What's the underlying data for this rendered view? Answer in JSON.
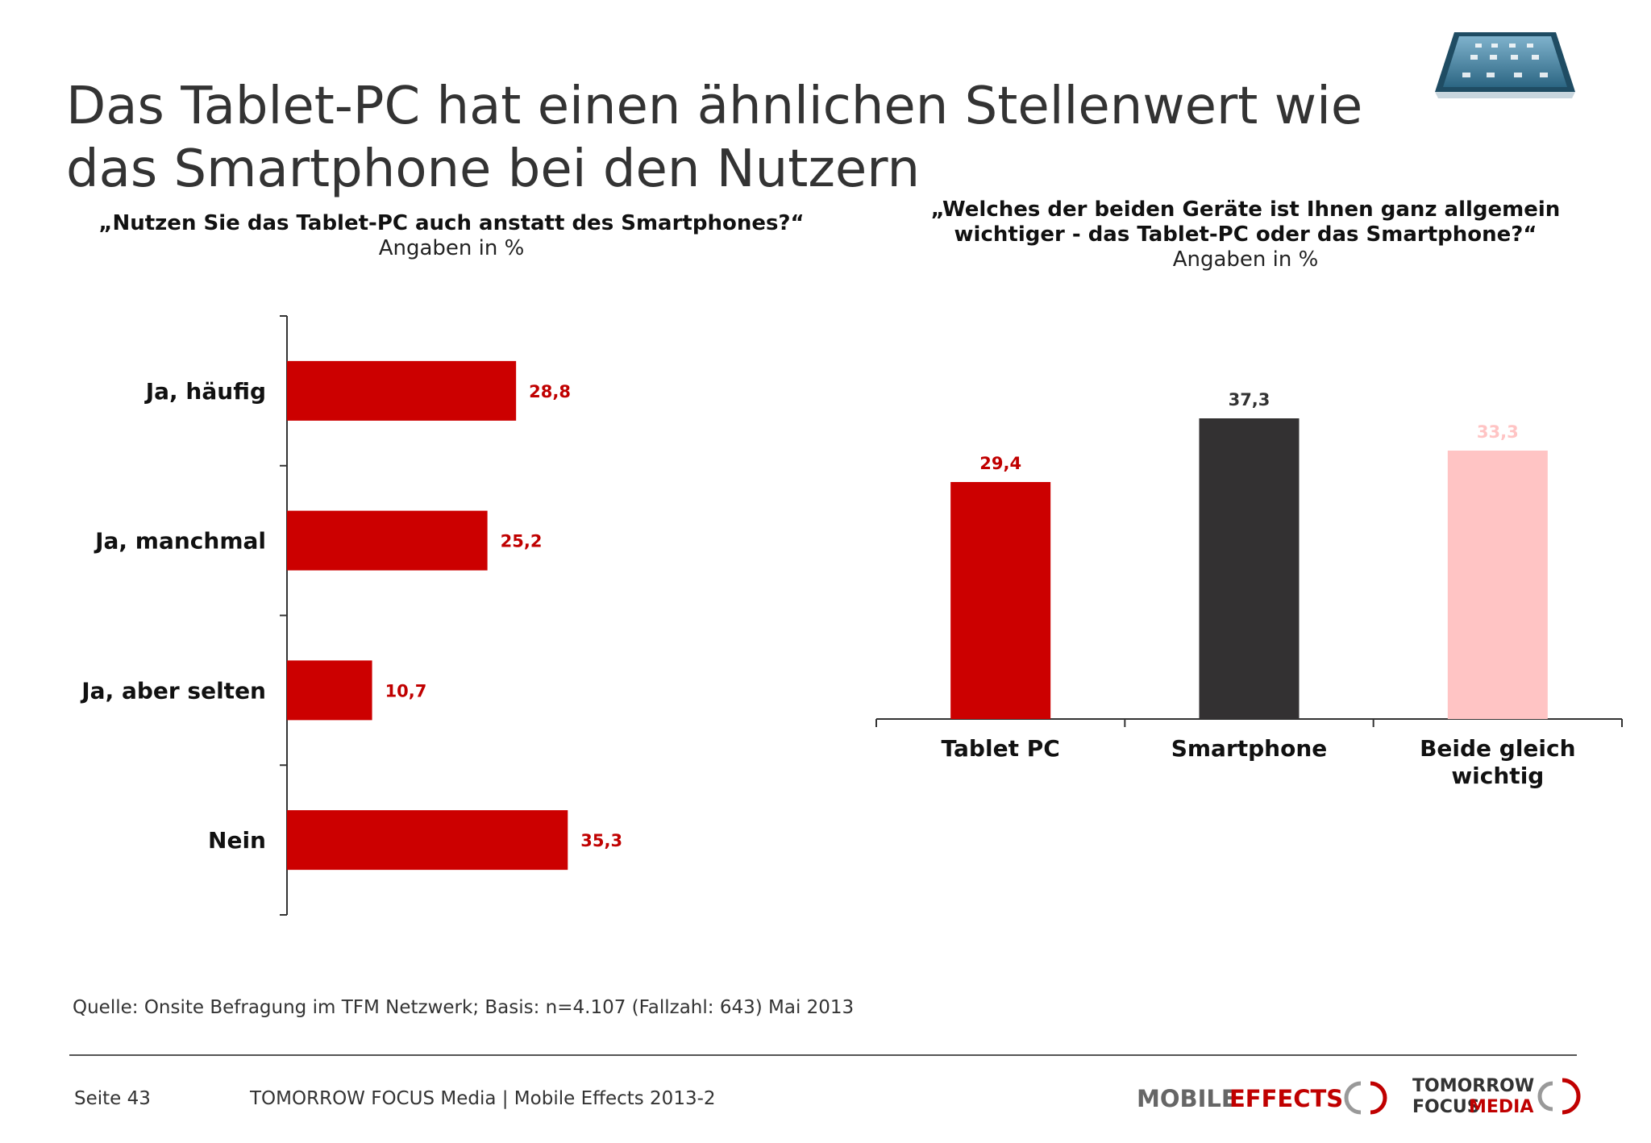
{
  "title_lines": [
    "Das Tablet-PC hat einen ähnlichen Stellenwert wie",
    "das Smartphone bei den Nutzern"
  ],
  "colors": {
    "red": "#cc0000",
    "dark": "#333132",
    "pink": "#ffc4c4",
    "label_red": "#c00000"
  },
  "question1": {
    "text": "„Nutzen Sie das Tablet-PC auch anstatt des Smartphones?“",
    "sub": "Angaben in %"
  },
  "question2": {
    "text_lines": [
      "„Welches der beiden Geräte ist Ihnen ganz allgemein",
      "wichtiger - das Tablet-PC oder das Smartphone?“"
    ],
    "sub": "Angaben in %"
  },
  "chart_data": [
    {
      "type": "bar",
      "orientation": "horizontal",
      "categories": [
        "Ja, häufig",
        "Ja, manchmal",
        "Ja, aber selten",
        "Nein"
      ],
      "values": [
        28.8,
        25.2,
        10.7,
        35.3
      ],
      "value_labels": [
        "28,8",
        "25,2",
        "10,7",
        "35,3"
      ],
      "xlim": [
        0,
        60
      ],
      "color": "#cc0000",
      "grid": false
    },
    {
      "type": "bar",
      "orientation": "vertical",
      "categories": [
        [
          "Tablet PC"
        ],
        [
          "Smartphone"
        ],
        [
          "Beide gleich",
          "wichtig"
        ]
      ],
      "values": [
        29.4,
        37.3,
        33.3
      ],
      "value_labels": [
        "29,4",
        "37,3",
        "33,3"
      ],
      "colors": [
        "#cc0000",
        "#333132",
        "#ffc4c4"
      ],
      "label_colors": [
        "#c00000",
        "#333333",
        "#ffc4c4"
      ],
      "ylim": [
        0,
        50
      ],
      "grid": false
    }
  ],
  "source": "Quelle: Onsite Befragung im TFM Netzwerk; Basis: n=4.107 (Fallzahl: 643) Mai 2013",
  "footer": {
    "page": "Seite 43",
    "text": "TOMORROW FOCUS Media | Mobile Effects 2013-2"
  },
  "logos": {
    "mobile": "MOBILE",
    "effects": "EFFECTS",
    "tomorrow": "TOMORROW",
    "focus": "FOCUS",
    "media": "MEDIA"
  }
}
